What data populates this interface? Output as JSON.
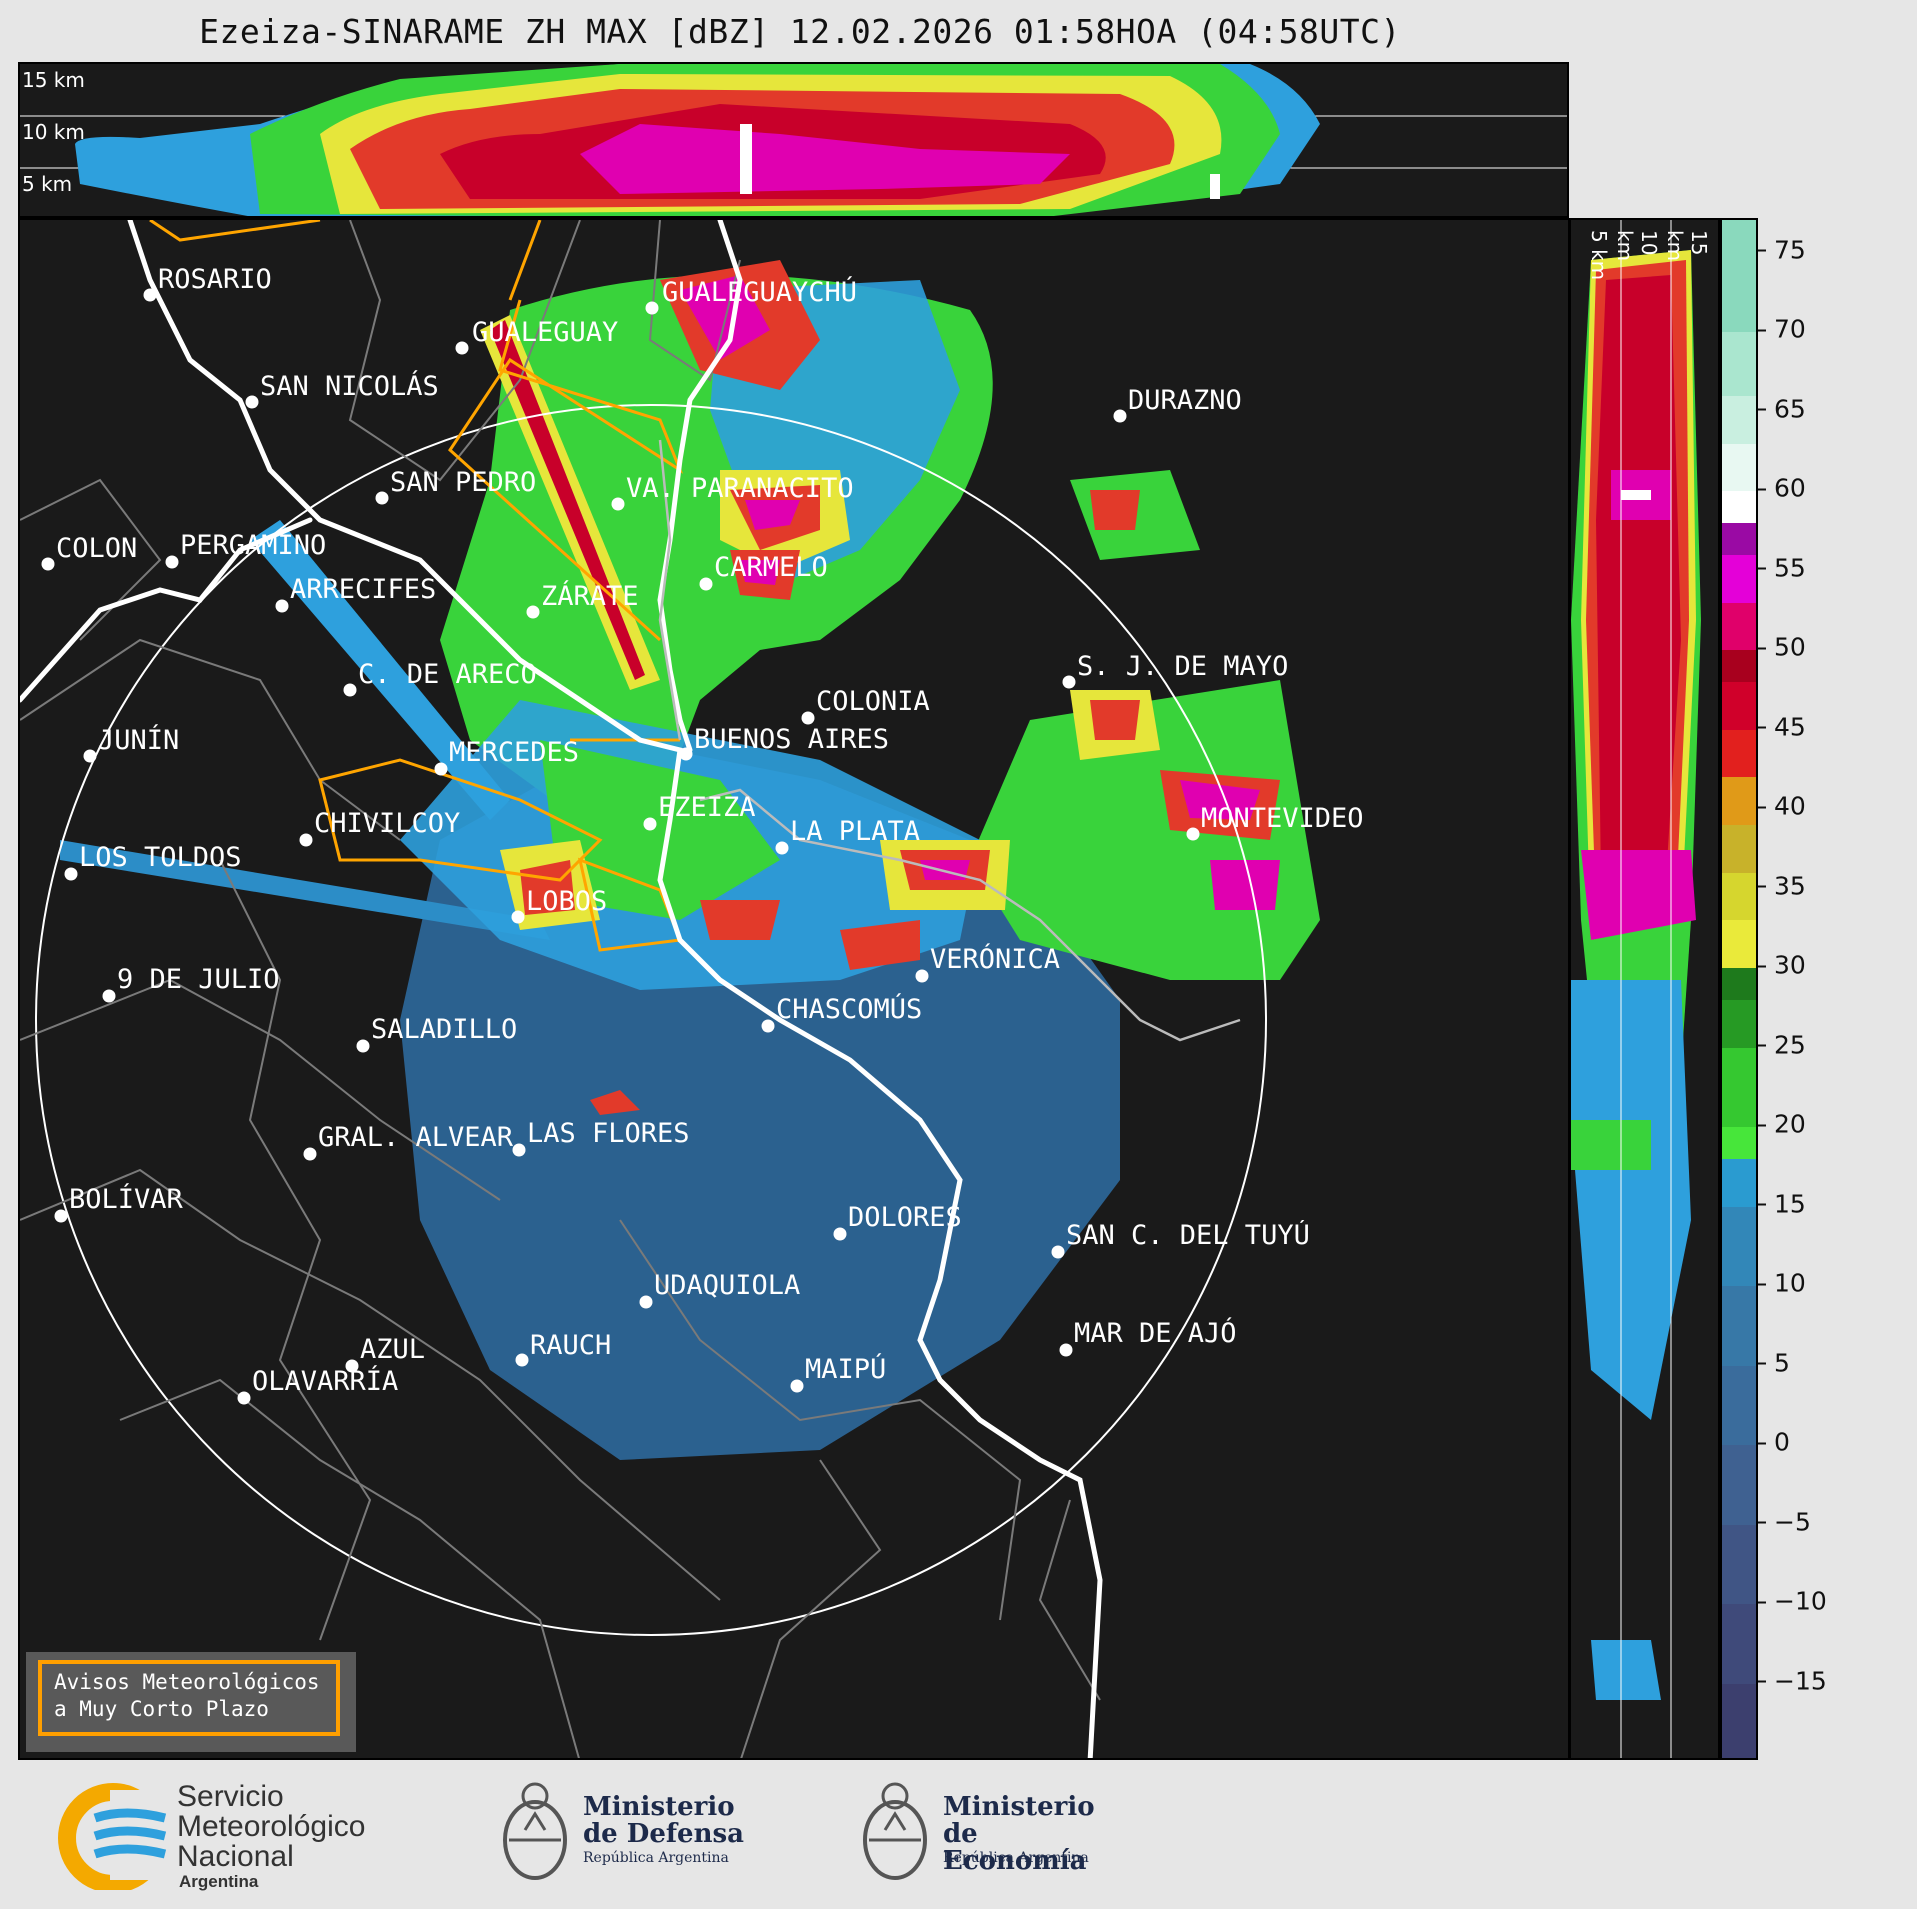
{
  "title": "Ezeiza-SINARAME ZH MAX [dBZ] 12.02.2026 01:58HOA (04:58UTC)",
  "top_altitudes": [
    "15 km",
    "10 km",
    "5 km"
  ],
  "side_altitudes": [
    "5 km",
    "10 km",
    "15 km"
  ],
  "colorbar": {
    "ticks": [
      "75",
      "70",
      "65",
      "60",
      "55",
      "50",
      "45",
      "40",
      "35",
      "30",
      "25",
      "20",
      "15",
      "10",
      "5",
      "0",
      "−5",
      "−10",
      "−15"
    ],
    "range": [
      -20,
      77
    ]
  },
  "cities": [
    {
      "name": "ROSARIO"
    },
    {
      "name": "GUALEGUAYCHÚ"
    },
    {
      "name": "GUALEGUAY"
    },
    {
      "name": "SAN NICOLÁS"
    },
    {
      "name": "DURAZNO"
    },
    {
      "name": "SAN PEDRO"
    },
    {
      "name": "VA. PARANACITO"
    },
    {
      "name": "COLON"
    },
    {
      "name": "PERGAMINO"
    },
    {
      "name": "CARMELO"
    },
    {
      "name": "ARRECIFES"
    },
    {
      "name": "ZÁRATE"
    },
    {
      "name": "S. J. DE MAYO"
    },
    {
      "name": "C. DE ARECO"
    },
    {
      "name": "COLONIA"
    },
    {
      "name": "JUNÍN"
    },
    {
      "name": "BUENOS AIRES"
    },
    {
      "name": "MERCEDES"
    },
    {
      "name": "MONTEVIDEO"
    },
    {
      "name": "EZEIZA"
    },
    {
      "name": "CHIVILCOY"
    },
    {
      "name": "LA PLATA"
    },
    {
      "name": "LOS TOLDOS"
    },
    {
      "name": "LOBOS"
    },
    {
      "name": "VERÓNICA"
    },
    {
      "name": "9 DE JULIO"
    },
    {
      "name": "CHASCOMÚS"
    },
    {
      "name": "SALADILLO"
    },
    {
      "name": "GRAL. ALVEAR"
    },
    {
      "name": "LAS FLORES"
    },
    {
      "name": "BOLÍVAR"
    },
    {
      "name": "DOLORES"
    },
    {
      "name": "SAN C. DEL TUYÚ"
    },
    {
      "name": "UDAQUIOLA"
    },
    {
      "name": "MAR DE AJÓ"
    },
    {
      "name": "AZUL"
    },
    {
      "name": "RAUCH"
    },
    {
      "name": "OLAVARRÍA"
    },
    {
      "name": "MAIPÚ"
    }
  ],
  "warning": {
    "line1": "Avisos Meteorológicos",
    "line2": "a Muy Corto Plazo"
  },
  "logos": {
    "smn": {
      "line1": "Servicio",
      "line2": "Meteorológico",
      "line3": "Nacional",
      "line4": "Argentina"
    },
    "defensa": {
      "line1": "Ministerio",
      "line2": "de Defensa",
      "line3": "República Argentina"
    },
    "economia": {
      "line1": "Ministerio",
      "line2": "de Economía",
      "line3": "República Argentina"
    }
  },
  "colors": {
    "background": "#1a1a1a",
    "warning_border": "#ff9f00",
    "coast": "#ffffff",
    "roads": "#ffa500"
  }
}
